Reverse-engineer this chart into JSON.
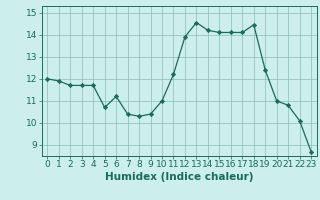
{
  "xlabel": "Humidex (Indice chaleur)",
  "x": [
    0,
    1,
    2,
    3,
    4,
    5,
    6,
    7,
    8,
    9,
    10,
    11,
    12,
    13,
    14,
    15,
    16,
    17,
    18,
    19,
    20,
    21,
    22,
    23
  ],
  "y": [
    12.0,
    11.9,
    11.7,
    11.7,
    11.7,
    10.7,
    11.2,
    10.4,
    10.3,
    10.4,
    11.0,
    12.2,
    13.9,
    14.55,
    14.2,
    14.1,
    14.1,
    14.1,
    14.45,
    12.4,
    11.0,
    10.8,
    10.1,
    8.7
  ],
  "ylim": [
    8.5,
    15.3
  ],
  "yticks": [
    9,
    10,
    11,
    12,
    13,
    14,
    15
  ],
  "xticks": [
    0,
    1,
    2,
    3,
    4,
    5,
    6,
    7,
    8,
    9,
    10,
    11,
    12,
    13,
    14,
    15,
    16,
    17,
    18,
    19,
    20,
    21,
    22,
    23
  ],
  "line_color": "#1a6b5a",
  "marker_color": "#1a6b5a",
  "bg_color": "#cceeed",
  "grid_color_major": "#8bbcbc",
  "grid_color_minor": "#aad5d4",
  "tick_label_color": "#1a6b5a",
  "axis_label_color": "#1a6b5a",
  "xlabel_fontsize": 7.5,
  "tick_fontsize": 6.5
}
